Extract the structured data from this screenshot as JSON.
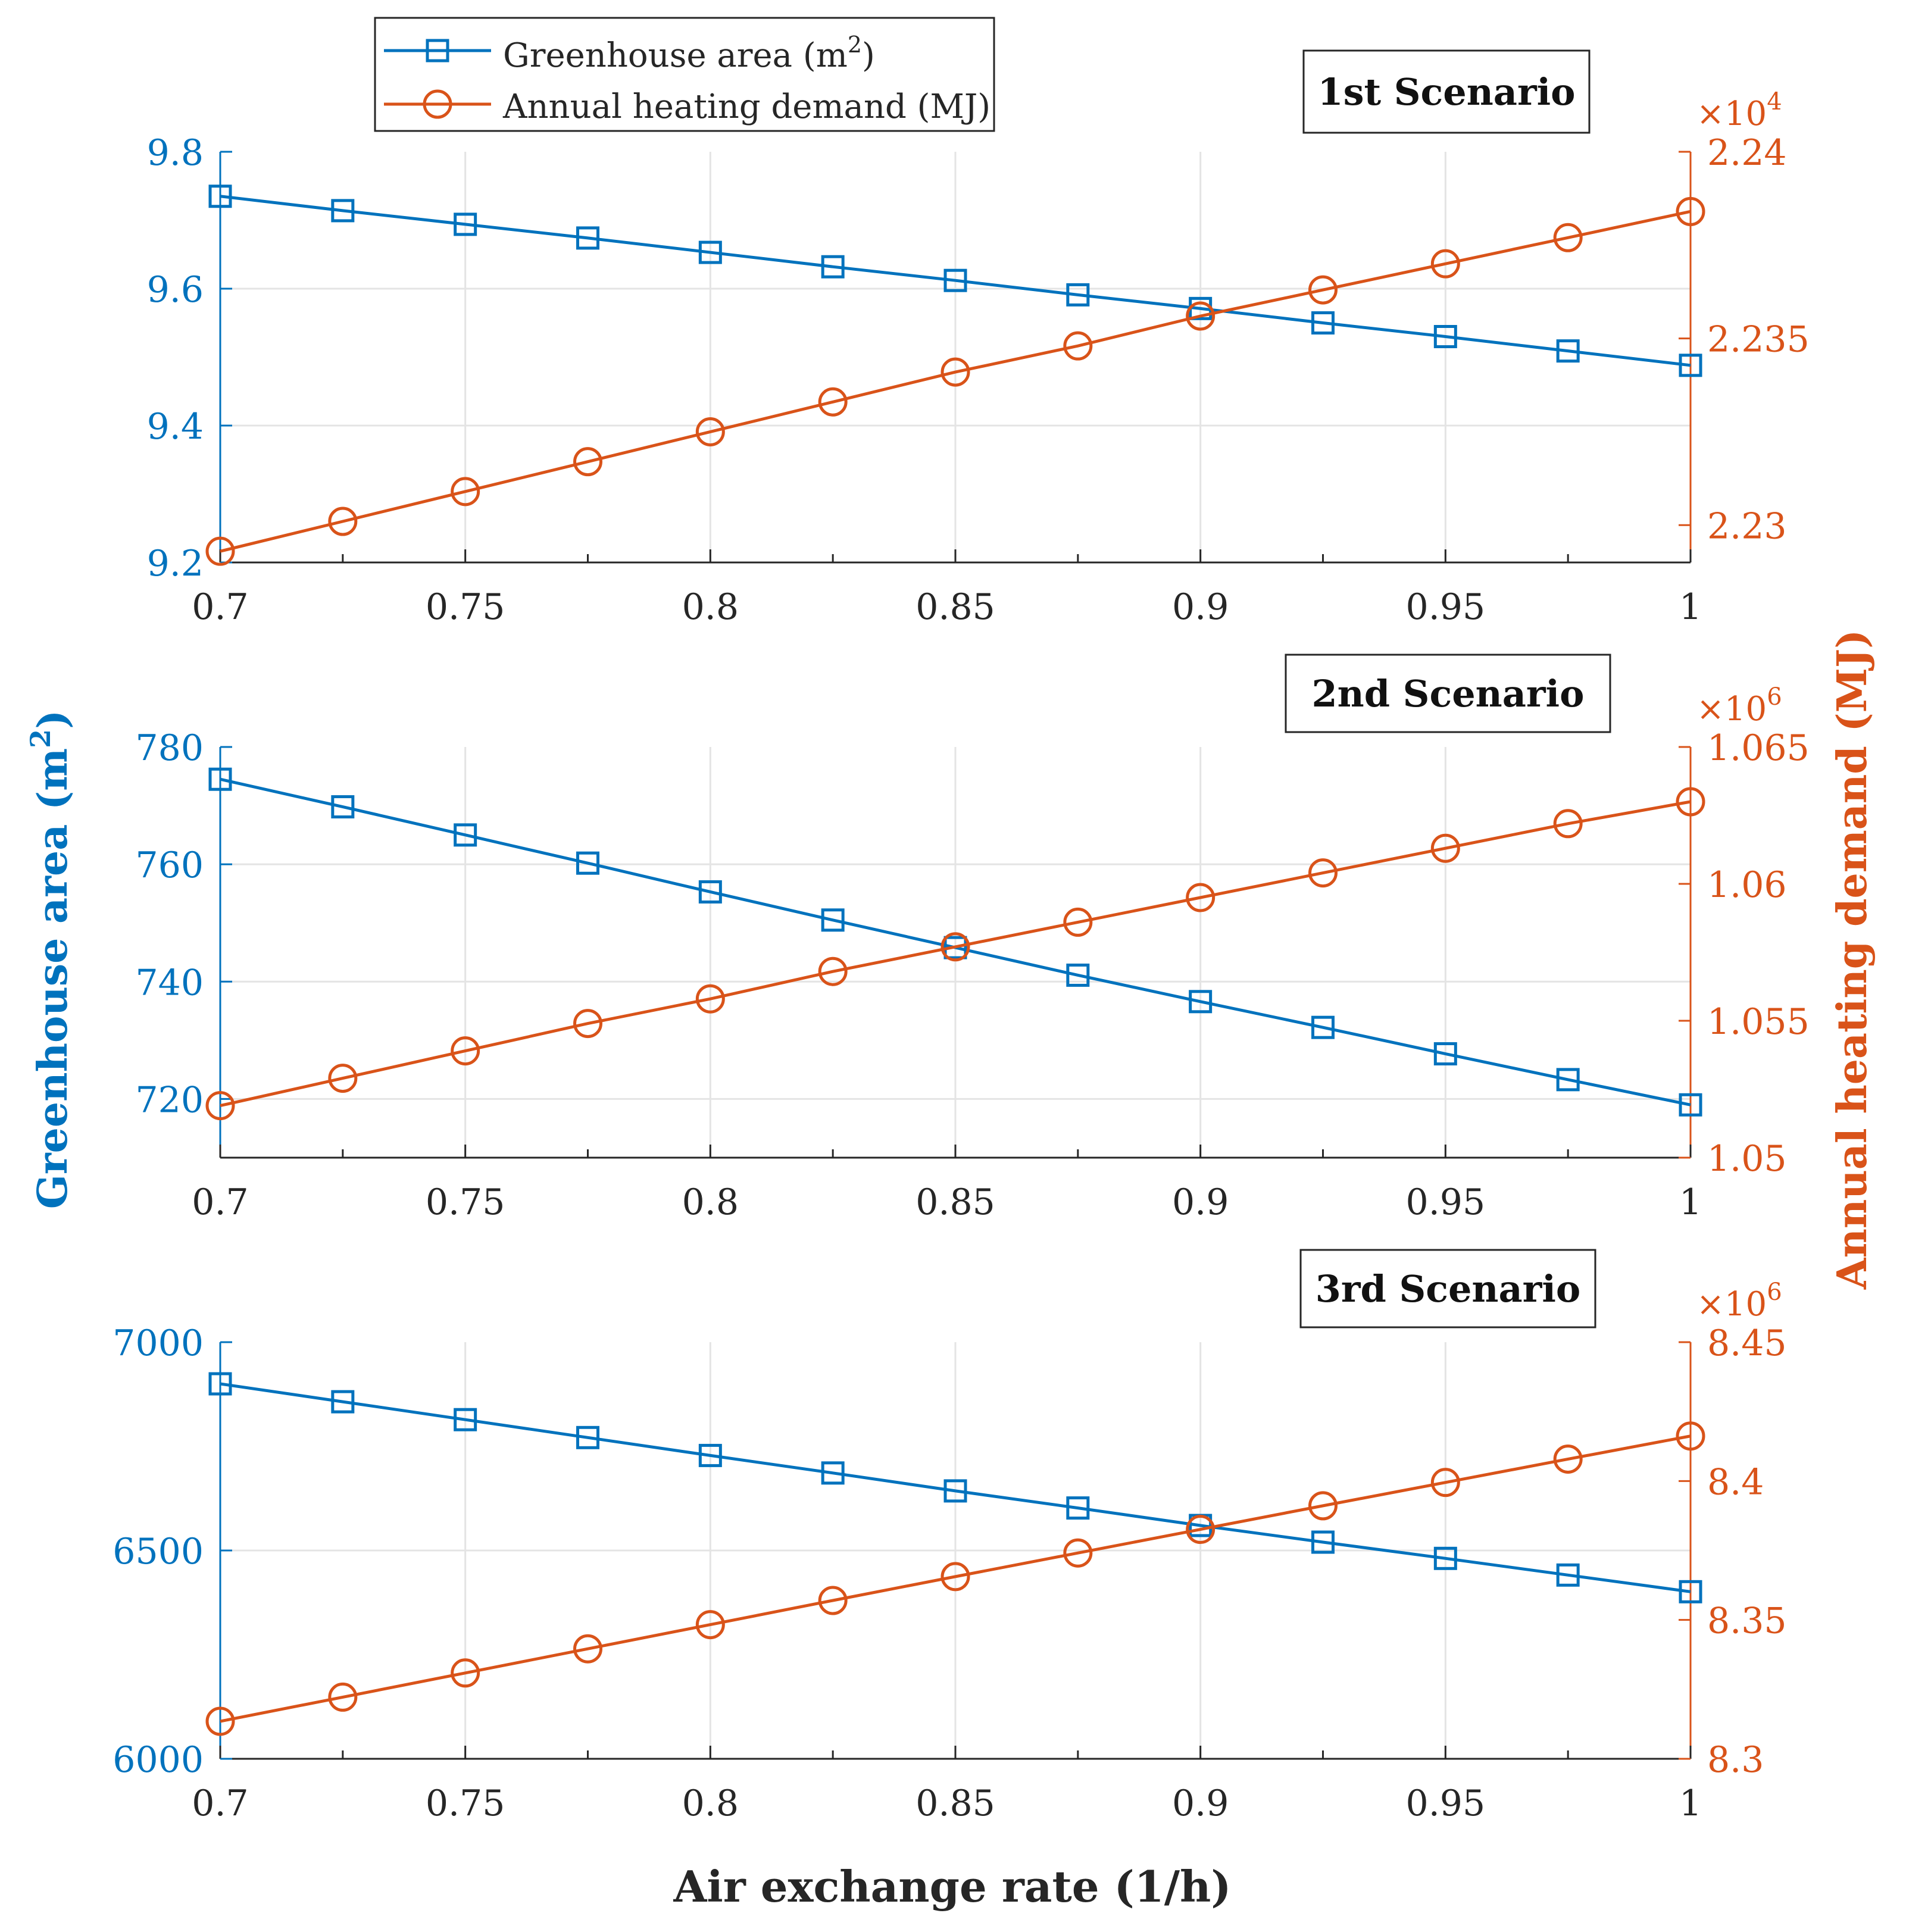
{
  "legend": {
    "entries": [
      {
        "label": "Greenhouse area (m",
        "sup": "2",
        "tail": ")",
        "marker": "square",
        "color": "#0072BD"
      },
      {
        "label": "Annual heating demand (MJ)",
        "sup": "",
        "tail": "",
        "marker": "circle",
        "color": "#D95319"
      }
    ]
  },
  "colors": {
    "area": "#0072BD",
    "heating": "#D95319",
    "grid": "#e4e4e4",
    "frame": "#262626"
  },
  "shared_axes": {
    "xlabel": "Air exchange rate (1/h)",
    "ylabel_left": {
      "main": "Greenhouse area (m",
      "sup": "2",
      "tail": ")"
    },
    "ylabel_right": "Annual heating demand (MJ)"
  },
  "chart_data": [
    {
      "type": "line",
      "title": "1st Scenario",
      "x": [
        0.7,
        0.725,
        0.75,
        0.775,
        0.8,
        0.825,
        0.85,
        0.875,
        0.9,
        0.925,
        0.95,
        0.975,
        1.0
      ],
      "xlim": [
        0.7,
        1.0
      ],
      "xticks": [
        0.7,
        0.75,
        0.8,
        0.85,
        0.9,
        0.95,
        1
      ],
      "xtick_labels": [
        "0.7",
        "0.75",
        "0.8",
        "0.85",
        "0.9",
        "0.95",
        "1"
      ],
      "left_axis": {
        "ylim": [
          9.2,
          9.8
        ],
        "ticks": [
          9.2,
          9.4,
          9.6,
          9.8
        ],
        "tick_labels": [
          "9.2",
          "9.4",
          "9.6",
          "9.8"
        ]
      },
      "right_axis": {
        "ylim": [
          2.229,
          2.24
        ],
        "ticks": [
          2.23,
          2.235,
          2.24
        ],
        "tick_labels": [
          "2.23",
          "2.235",
          "2.24"
        ],
        "exponent_label": "×10",
        "exponent": "4"
      },
      "series": [
        {
          "name": "Greenhouse area (m2)",
          "axis": "left",
          "marker": "square",
          "values": [
            9.735,
            9.714,
            9.694,
            9.674,
            9.653,
            9.632,
            9.612,
            9.591,
            9.571,
            9.55,
            9.53,
            9.509,
            9.488
          ]
        },
        {
          "name": "Annual heating demand (MJ)",
          "axis": "right",
          "marker": "circle",
          "values": [
            2.2293,
            2.2301,
            2.2309,
            2.2317,
            2.2325,
            2.2333,
            2.2341,
            2.2348,
            2.2356,
            2.2363,
            2.237,
            2.2377,
            2.2384
          ]
        }
      ]
    },
    {
      "type": "line",
      "title": "2nd Scenario",
      "x": [
        0.7,
        0.725,
        0.75,
        0.775,
        0.8,
        0.825,
        0.85,
        0.875,
        0.9,
        0.925,
        0.95,
        0.975,
        1.0
      ],
      "xlim": [
        0.7,
        1.0
      ],
      "xticks": [
        0.7,
        0.75,
        0.8,
        0.85,
        0.9,
        0.95,
        1
      ],
      "xtick_labels": [
        "0.7",
        "0.75",
        "0.8",
        "0.85",
        "0.9",
        "0.95",
        "1"
      ],
      "left_axis": {
        "ylim": [
          710,
          780
        ],
        "ticks": [
          720,
          740,
          760,
          780
        ],
        "tick_labels": [
          "720",
          "740",
          "760",
          "780"
        ]
      },
      "right_axis": {
        "ylim": [
          1.05,
          1.065
        ],
        "ticks": [
          1.05,
          1.055,
          1.06,
          1.065
        ],
        "tick_labels": [
          "1.05",
          "1.055",
          "1.06",
          "1.065"
        ],
        "exponent_label": "×10",
        "exponent": "6"
      },
      "series": [
        {
          "name": "Greenhouse area (m2)",
          "axis": "left",
          "marker": "square",
          "values": [
            774.5,
            769.8,
            765.0,
            760.2,
            755.3,
            750.5,
            745.8,
            741.1,
            736.6,
            732.2,
            727.7,
            723.3,
            719.0
          ]
        },
        {
          "name": "Annual heating demand (MJ)",
          "axis": "right",
          "marker": "circle",
          "values": [
            1.0519,
            1.0529,
            1.0539,
            1.0549,
            1.0558,
            1.0568,
            1.0577,
            1.0586,
            1.0595,
            1.0604,
            1.0613,
            1.0622,
            1.063
          ]
        }
      ]
    },
    {
      "type": "line",
      "title": "3rd Scenario",
      "x": [
        0.7,
        0.725,
        0.75,
        0.775,
        0.8,
        0.825,
        0.85,
        0.875,
        0.9,
        0.925,
        0.95,
        0.975,
        1.0
      ],
      "xlim": [
        0.7,
        1.0
      ],
      "xticks": [
        0.7,
        0.75,
        0.8,
        0.85,
        0.9,
        0.95,
        1
      ],
      "xtick_labels": [
        "0.7",
        "0.75",
        "0.8",
        "0.85",
        "0.9",
        "0.95",
        "1"
      ],
      "left_axis": {
        "ylim": [
          6000,
          7000
        ],
        "ticks": [
          6000,
          6500,
          7000
        ],
        "tick_labels": [
          "6000",
          "6500",
          "7000"
        ]
      },
      "right_axis": {
        "ylim": [
          8.3,
          8.45
        ],
        "ticks": [
          8.3,
          8.35,
          8.4,
          8.45
        ],
        "tick_labels": [
          "8.3",
          "8.35",
          "8.4",
          "8.45"
        ],
        "exponent_label": "×10",
        "exponent": "6"
      },
      "series": [
        {
          "name": "Greenhouse area (m2)",
          "axis": "left",
          "marker": "square",
          "values": [
            6900,
            6857,
            6814,
            6771,
            6728,
            6686,
            6643,
            6602,
            6560,
            6520,
            6481,
            6441,
            6401
          ]
        },
        {
          "name": "Annual heating demand (MJ)",
          "axis": "right",
          "marker": "circle",
          "values": [
            8.3135,
            8.3222,
            8.3309,
            8.3396,
            8.3483,
            8.357,
            8.3656,
            8.3741,
            8.3826,
            8.3911,
            8.3995,
            8.4079,
            8.4162
          ]
        }
      ]
    }
  ]
}
